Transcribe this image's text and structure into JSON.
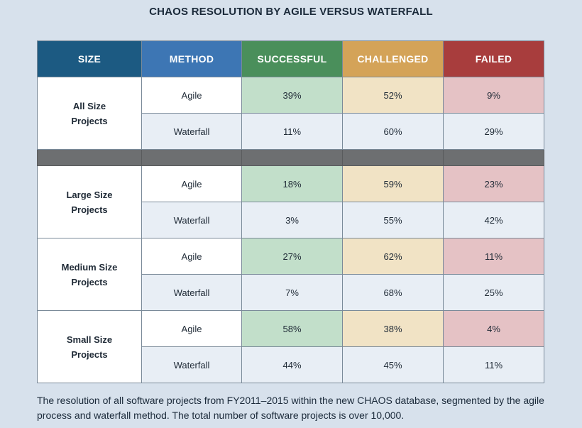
{
  "title": "CHAOS RESOLUTION BY AGILE VERSUS WATERFALL",
  "caption": "The resolution of all software projects from FY2011–2015 within the new CHAOS database, segmented by the agile process and waterfall method. The total number of software projects is over 10,000.",
  "colors": {
    "header_size": "#1c5a82",
    "header_method": "#3d76b4",
    "header_successful": "#4a8f5b",
    "header_challenged": "#d4a358",
    "header_failed": "#a83d3d",
    "agile_successful": "#c2dfca",
    "agile_challenged": "#f1e3c5",
    "agile_failed": "#e5c2c5",
    "waterfall_row": "#e8eef5",
    "separator": "#6d6f71"
  },
  "chart_data": {
    "type": "table",
    "title": "CHAOS RESOLUTION BY AGILE VERSUS WATERFALL",
    "columns": [
      "SIZE",
      "METHOD",
      "SUCCESSFUL",
      "CHALLENGED",
      "FAILED"
    ],
    "groups": [
      {
        "size": "All Size Projects",
        "rows": [
          {
            "method": "Agile",
            "successful": "39%",
            "challenged": "52%",
            "failed": "9%"
          },
          {
            "method": "Waterfall",
            "successful": "11%",
            "challenged": "60%",
            "failed": "29%"
          }
        ]
      },
      {
        "size": "Large Size Projects",
        "rows": [
          {
            "method": "Agile",
            "successful": "18%",
            "challenged": "59%",
            "failed": "23%"
          },
          {
            "method": "Waterfall",
            "successful": "3%",
            "challenged": "55%",
            "failed": "42%"
          }
        ]
      },
      {
        "size": "Medium Size Projects",
        "rows": [
          {
            "method": "Agile",
            "successful": "27%",
            "challenged": "62%",
            "failed": "11%"
          },
          {
            "method": "Waterfall",
            "successful": "7%",
            "challenged": "68%",
            "failed": "25%"
          }
        ]
      },
      {
        "size": "Small Size Projects",
        "rows": [
          {
            "method": "Agile",
            "successful": "58%",
            "challenged": "38%",
            "failed": "4%"
          },
          {
            "method": "Waterfall",
            "successful": "44%",
            "challenged": "45%",
            "failed": "11%"
          }
        ]
      }
    ]
  }
}
